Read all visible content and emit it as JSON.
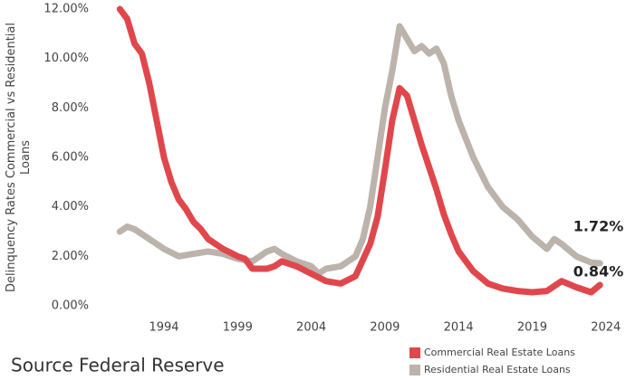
{
  "chart_data": {
    "type": "line",
    "y_label": "Delinquency Rates Commercial vs Residential Loans",
    "source": "Source Federal Reserve",
    "xlim": [
      1990,
      2025
    ],
    "xticks": [
      1994,
      1999,
      2004,
      2009,
      2014,
      2019,
      2024
    ],
    "ylim": [
      0,
      12
    ],
    "yticks": [
      {
        "value": 0,
        "label": "0.00%"
      },
      {
        "value": 2,
        "label": "2.00%"
      },
      {
        "value": 4,
        "label": "4.00%"
      },
      {
        "value": 6,
        "label": "6.00%"
      },
      {
        "value": 8,
        "label": "8.00%"
      },
      {
        "value": 10,
        "label": "10.00%"
      },
      {
        "value": 12,
        "label": "12.00%"
      }
    ],
    "grid": false,
    "legend": "bottom-right",
    "series": [
      {
        "name": "Commercial Real Estate Loans",
        "color": "#e0474c",
        "x": [
          1991,
          1991.5,
          1992,
          1992.5,
          1993,
          1993.5,
          1994,
          1994.5,
          1995,
          1995.5,
          1996,
          1996.5,
          1997,
          1998,
          1999,
          1999.5,
          2000,
          2001,
          2001.5,
          2002,
          2003,
          2004,
          2005,
          2006,
          2007,
          2008,
          2008.5,
          2009,
          2009.5,
          2010,
          2010.5,
          2011,
          2011.5,
          2012,
          2012.5,
          2013,
          2013.5,
          2014,
          2015,
          2016,
          2017,
          2018,
          2019,
          2020,
          2021,
          2022,
          2023,
          2023.6
        ],
        "values": [
          12.0,
          11.6,
          10.6,
          10.2,
          9.0,
          7.5,
          6.0,
          5.0,
          4.3,
          3.9,
          3.4,
          3.1,
          2.7,
          2.3,
          2.0,
          1.9,
          1.5,
          1.5,
          1.6,
          1.8,
          1.6,
          1.3,
          1.0,
          0.9,
          1.2,
          2.5,
          3.6,
          5.5,
          7.5,
          8.8,
          8.5,
          7.5,
          6.5,
          5.6,
          4.7,
          3.7,
          2.9,
          2.2,
          1.4,
          0.9,
          0.7,
          0.6,
          0.55,
          0.6,
          1.0,
          0.75,
          0.55,
          0.84
        ],
        "value_labels": [
          null,
          null,
          null,
          null,
          null,
          null,
          null,
          null,
          null,
          null,
          null,
          null,
          null,
          null,
          null,
          null,
          null,
          null,
          null,
          null,
          null,
          null,
          null,
          null,
          null,
          null,
          null,
          null,
          null,
          null,
          null,
          null,
          null,
          null,
          null,
          null,
          null,
          null,
          null,
          null,
          null,
          null,
          null,
          null,
          null,
          null,
          null,
          "0.84%"
        ]
      },
      {
        "name": "Residential Real Estate Loans",
        "color": "#bcb3ab",
        "x": [
          1991,
          1991.5,
          1992,
          1993,
          1994,
          1995,
          1996,
          1997,
          1998,
          1999,
          2000,
          2001,
          2001.5,
          2002,
          2003,
          2004,
          2004.5,
          2005,
          2006,
          2007,
          2007.5,
          2008,
          2008.5,
          2009,
          2009.5,
          2010,
          2010.5,
          2011,
          2011.5,
          2012,
          2012.5,
          2013,
          2013.5,
          2014,
          2015,
          2016,
          2017,
          2018,
          2019,
          2020,
          2020.5,
          2021,
          2022,
          2023,
          2023.6
        ],
        "values": [
          3.0,
          3.2,
          3.1,
          2.7,
          2.3,
          2.0,
          2.1,
          2.2,
          2.1,
          1.9,
          1.8,
          2.2,
          2.3,
          2.1,
          1.8,
          1.6,
          1.3,
          1.5,
          1.6,
          2.0,
          2.7,
          4.0,
          6.0,
          8.0,
          9.5,
          11.3,
          10.8,
          10.3,
          10.5,
          10.2,
          10.4,
          9.8,
          8.5,
          7.5,
          6.0,
          4.8,
          4.0,
          3.5,
          2.8,
          2.3,
          2.7,
          2.5,
          2.0,
          1.75,
          1.72
        ],
        "value_labels": [
          null,
          null,
          null,
          null,
          null,
          null,
          null,
          null,
          null,
          null,
          null,
          null,
          null,
          null,
          null,
          null,
          null,
          null,
          null,
          null,
          null,
          null,
          null,
          null,
          null,
          null,
          null,
          null,
          null,
          null,
          null,
          null,
          null,
          null,
          null,
          null,
          null,
          null,
          null,
          null,
          null,
          null,
          null,
          null,
          "1.72%"
        ]
      }
    ]
  }
}
